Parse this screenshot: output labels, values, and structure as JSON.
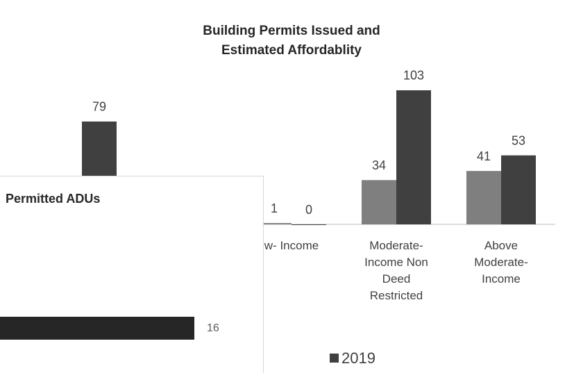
{
  "chart_data": [
    {
      "type": "bar",
      "title": "Building Permits Issued and Estimated Affordablity",
      "categories": [
        null,
        null,
        "w- Income",
        "Moderate-Income Non Deed Restricted",
        "Above Moderate-Income"
      ],
      "series": [
        {
          "color": "#7f7f7f",
          "values": [
            null,
            null,
            1,
            34,
            41
          ]
        },
        {
          "name": "2019",
          "color": "#404040",
          "values": [
            79,
            null,
            0,
            103,
            53
          ]
        }
      ],
      "ylim": [
        0,
        110
      ],
      "legend": "bottom"
    },
    {
      "type": "hbar",
      "title": "Permitted ADUs",
      "categories": [
        null
      ],
      "values": [
        16
      ],
      "color": "#262626",
      "xlim": [
        0,
        20
      ]
    }
  ]
}
